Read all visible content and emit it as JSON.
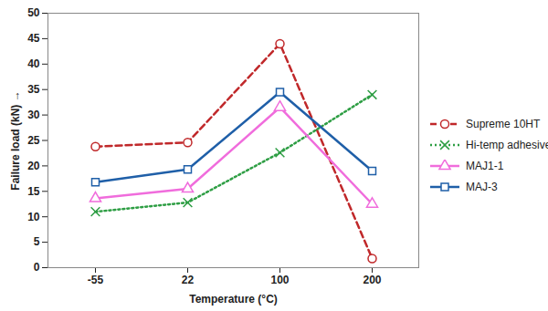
{
  "chart_data": {
    "type": "line",
    "x_label": "Temperature (°C)",
    "y_label": "Failure load (kN)",
    "categories": [
      "-55",
      "22",
      "100",
      "200"
    ],
    "series": [
      {
        "name": "Supreme 10HT",
        "color": "#c0282a",
        "line_style": "dashed",
        "marker": "circle",
        "values": [
          23.8,
          24.6,
          44,
          1.8
        ]
      },
      {
        "name": "Hi-temp adhesive",
        "color": "#2e9e44",
        "line_style": "dotted",
        "marker": "x",
        "values": [
          11,
          12.8,
          22.6,
          34
        ]
      },
      {
        "name": "MAJ1-1",
        "color": "#f06cdc",
        "line_style": "solid",
        "marker": "triangle",
        "values": [
          13.6,
          15.5,
          31.5,
          12.5
        ]
      },
      {
        "name": "MAJ-3",
        "color": "#1f5fa8",
        "line_style": "solid",
        "marker": "square",
        "values": [
          16.8,
          19.3,
          34.5,
          19
        ]
      }
    ],
    "ylim": [
      0,
      50
    ],
    "yticks": [
      0,
      5,
      10,
      15,
      20,
      25,
      30,
      35,
      40,
      45,
      50
    ],
    "grid": false,
    "legend": "right"
  }
}
